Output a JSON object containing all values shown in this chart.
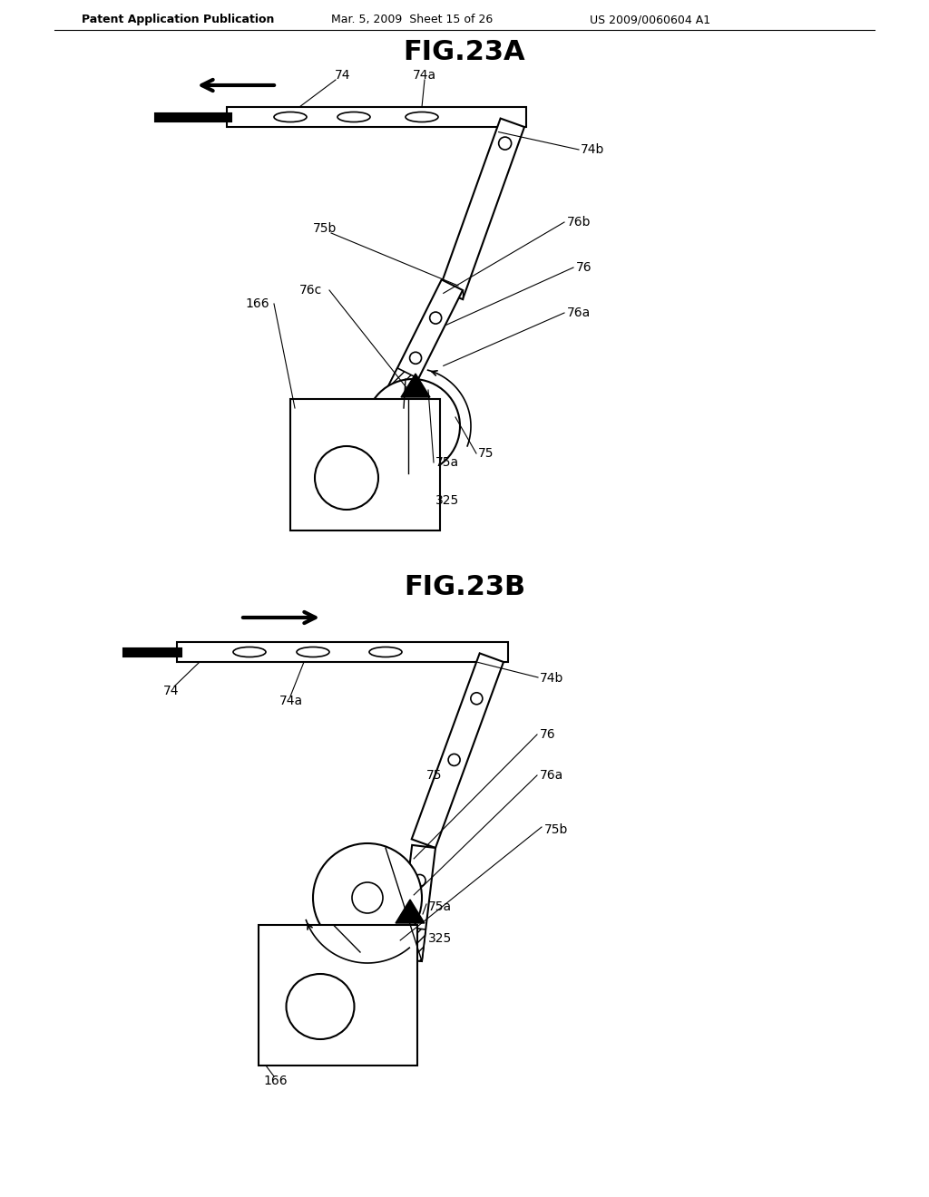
{
  "background_color": "#ffffff",
  "header_text": "Patent Application Publication",
  "header_date": "Mar. 5, 2009  Sheet 15 of 26",
  "header_patent": "US 2009/0060604 A1",
  "fig_a_title": "FIG.23A",
  "fig_b_title": "FIG.23B",
  "line_color": "#000000",
  "text_color": "#000000"
}
